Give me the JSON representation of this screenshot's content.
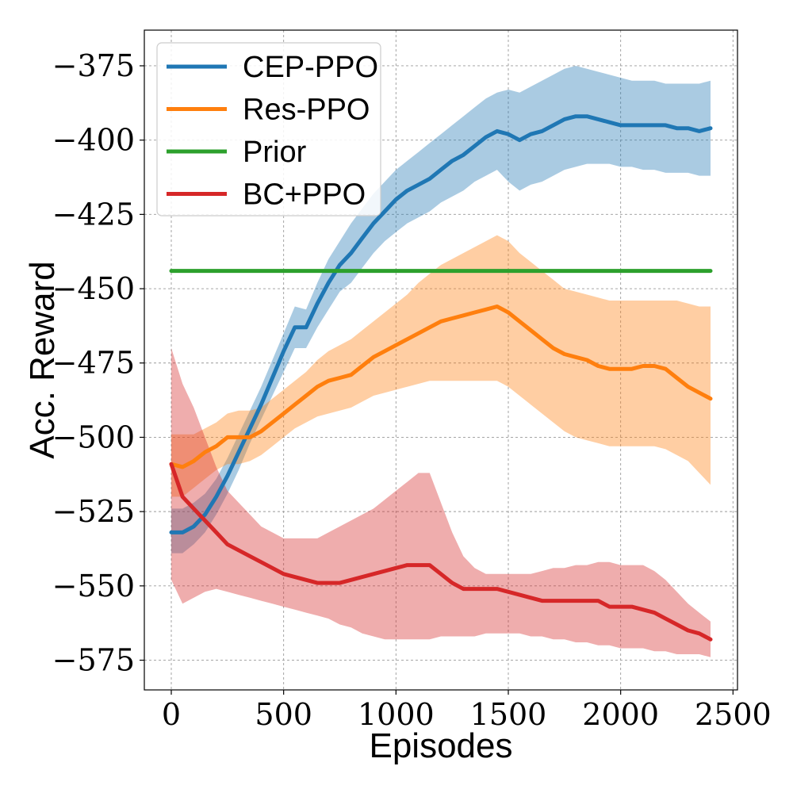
{
  "chart_data": {
    "type": "line",
    "title": "",
    "xlabel": "Episodes",
    "ylabel": "Acc. Reward",
    "xlim": [
      -120,
      2520
    ],
    "ylim": [
      -585,
      -363
    ],
    "xticks": [
      0,
      500,
      1000,
      1500,
      2000,
      2500
    ],
    "yticks": [
      -375,
      -400,
      -425,
      -450,
      -475,
      -500,
      -525,
      -550,
      -575
    ],
    "x_tick_labels": [
      "0",
      "500",
      "1000",
      "1500",
      "2000",
      "2500"
    ],
    "y_tick_labels": [
      "−375",
      "−400",
      "−425",
      "−450",
      "−475",
      "−500",
      "−525",
      "−550",
      "−575"
    ],
    "grid": true,
    "legend_position": "top-left",
    "series": [
      {
        "name": "CEP-PPO",
        "color": "#1f77b4",
        "x": [
          0,
          50,
          100,
          150,
          200,
          250,
          300,
          350,
          400,
          450,
          500,
          550,
          600,
          650,
          700,
          750,
          800,
          850,
          900,
          950,
          1000,
          1050,
          1100,
          1150,
          1200,
          1250,
          1300,
          1350,
          1400,
          1450,
          1500,
          1550,
          1600,
          1650,
          1700,
          1750,
          1800,
          1850,
          1900,
          1950,
          2000,
          2050,
          2100,
          2150,
          2200,
          2250,
          2300,
          2350,
          2400
        ],
        "mean": [
          -532,
          -532,
          -530,
          -526,
          -520,
          -513,
          -505,
          -497,
          -489,
          -480,
          -471,
          -463,
          -463,
          -455,
          -448,
          -442,
          -438,
          -433,
          -428,
          -424,
          -420,
          -417,
          -415,
          -413,
          -410,
          -407,
          -405,
          -402,
          -399,
          -397,
          -398,
          -400,
          -398,
          -397,
          -395,
          -393,
          -392,
          -392,
          -393,
          -394,
          -395,
          -395,
          -395,
          -395,
          -395,
          -396,
          -396,
          -397,
          -396
        ],
        "lower": [
          -539,
          -539,
          -536,
          -532,
          -526,
          -519,
          -511,
          -502,
          -494,
          -486,
          -478,
          -470,
          -470,
          -463,
          -457,
          -451,
          -448,
          -443,
          -438,
          -434,
          -431,
          -428,
          -426,
          -424,
          -421,
          -419,
          -417,
          -414,
          -412,
          -410,
          -414,
          -417,
          -415,
          -414,
          -412,
          -410,
          -409,
          -408,
          -408,
          -408,
          -409,
          -409,
          -410,
          -410,
          -411,
          -411,
          -411,
          -412,
          -412
        ],
        "upper": [
          -524,
          -524,
          -522,
          -519,
          -514,
          -507,
          -499,
          -491,
          -483,
          -474,
          -465,
          -456,
          -457,
          -448,
          -440,
          -434,
          -428,
          -423,
          -418,
          -414,
          -410,
          -407,
          -404,
          -401,
          -398,
          -395,
          -392,
          -389,
          -386,
          -384,
          -383,
          -384,
          -382,
          -380,
          -378,
          -376,
          -375,
          -376,
          -377,
          -378,
          -379,
          -380,
          -380,
          -380,
          -381,
          -381,
          -381,
          -381,
          -380
        ]
      },
      {
        "name": "Res-PPO",
        "color": "#ff7f0e",
        "x": [
          0,
          50,
          100,
          150,
          200,
          250,
          300,
          350,
          400,
          450,
          500,
          550,
          600,
          650,
          700,
          750,
          800,
          850,
          900,
          950,
          1000,
          1050,
          1100,
          1150,
          1200,
          1250,
          1300,
          1350,
          1400,
          1450,
          1500,
          1550,
          1600,
          1650,
          1700,
          1750,
          1800,
          1850,
          1900,
          1950,
          2000,
          2050,
          2100,
          2150,
          2200,
          2250,
          2300,
          2350,
          2400
        ],
        "mean": [
          -509,
          -510,
          -508,
          -505,
          -503,
          -500,
          -500,
          -500,
          -498,
          -495,
          -492,
          -489,
          -486,
          -483,
          -481,
          -480,
          -479,
          -476,
          -473,
          -471,
          -469,
          -467,
          -465,
          -463,
          -461,
          -460,
          -459,
          -458,
          -457,
          -456,
          -458,
          -461,
          -464,
          -467,
          -470,
          -472,
          -473,
          -474,
          -476,
          -477,
          -477,
          -477,
          -476,
          -476,
          -477,
          -480,
          -483,
          -485,
          -487
        ],
        "lower": [
          -520,
          -520,
          -517,
          -514,
          -511,
          -509,
          -509,
          -508,
          -506,
          -503,
          -500,
          -497,
          -495,
          -493,
          -492,
          -491,
          -490,
          -488,
          -486,
          -485,
          -484,
          -483,
          -482,
          -481,
          -481,
          -481,
          -481,
          -481,
          -481,
          -481,
          -483,
          -486,
          -489,
          -492,
          -495,
          -498,
          -500,
          -501,
          -502,
          -503,
          -503,
          -503,
          -503,
          -503,
          -504,
          -506,
          -508,
          -512,
          -516
        ],
        "upper": [
          -499,
          -499,
          -499,
          -497,
          -495,
          -492,
          -491,
          -491,
          -490,
          -487,
          -484,
          -481,
          -478,
          -474,
          -471,
          -469,
          -467,
          -464,
          -461,
          -458,
          -455,
          -452,
          -448,
          -445,
          -442,
          -440,
          -438,
          -436,
          -434,
          -432,
          -434,
          -438,
          -441,
          -444,
          -447,
          -450,
          -451,
          -452,
          -453,
          -454,
          -454,
          -454,
          -454,
          -454,
          -454,
          -454,
          -455,
          -456,
          -456
        ]
      },
      {
        "name": "Prior",
        "color": "#2ca02c",
        "x": [
          0,
          2400
        ],
        "mean": [
          -444,
          -444
        ]
      },
      {
        "name": "BC+PPO",
        "color": "#d62728",
        "x": [
          0,
          50,
          100,
          150,
          200,
          250,
          300,
          350,
          400,
          450,
          500,
          550,
          600,
          650,
          700,
          750,
          800,
          850,
          900,
          950,
          1000,
          1050,
          1100,
          1150,
          1200,
          1250,
          1300,
          1350,
          1400,
          1450,
          1500,
          1550,
          1600,
          1650,
          1700,
          1750,
          1800,
          1850,
          1900,
          1950,
          2000,
          2050,
          2100,
          2150,
          2200,
          2250,
          2300,
          2350,
          2400
        ],
        "mean": [
          -509,
          -520,
          -524,
          -528,
          -532,
          -536,
          -538,
          -540,
          -542,
          -544,
          -546,
          -547,
          -548,
          -549,
          -549,
          -549,
          -548,
          -547,
          -546,
          -545,
          -544,
          -543,
          -543,
          -543,
          -546,
          -549,
          -551,
          -551,
          -551,
          -551,
          -552,
          -553,
          -554,
          -555,
          -555,
          -555,
          -555,
          -555,
          -555,
          -557,
          -557,
          -557,
          -558,
          -559,
          -561,
          -563,
          -565,
          -566,
          -568
        ],
        "lower": [
          -548,
          -556,
          -554,
          -552,
          -551,
          -552,
          -553,
          -554,
          -555,
          -556,
          -557,
          -558,
          -559,
          -560,
          -561,
          -563,
          -564,
          -566,
          -567,
          -568,
          -568,
          -568,
          -568,
          -568,
          -567,
          -567,
          -567,
          -567,
          -566,
          -566,
          -566,
          -566,
          -567,
          -567,
          -568,
          -568,
          -569,
          -569,
          -570,
          -570,
          -571,
          -571,
          -571,
          -572,
          -572,
          -573,
          -573,
          -573,
          -574
        ],
        "upper": [
          -470,
          -482,
          -490,
          -500,
          -510,
          -518,
          -522,
          -526,
          -530,
          -532,
          -534,
          -534,
          -534,
          -534,
          -532,
          -530,
          -528,
          -526,
          -524,
          -521,
          -518,
          -515,
          -512,
          -512,
          -522,
          -532,
          -540,
          -544,
          -546,
          -546,
          -546,
          -546,
          -546,
          -545,
          -544,
          -544,
          -543,
          -543,
          -542,
          -542,
          -543,
          -543,
          -543,
          -545,
          -548,
          -552,
          -556,
          -559,
          -562
        ]
      }
    ]
  }
}
